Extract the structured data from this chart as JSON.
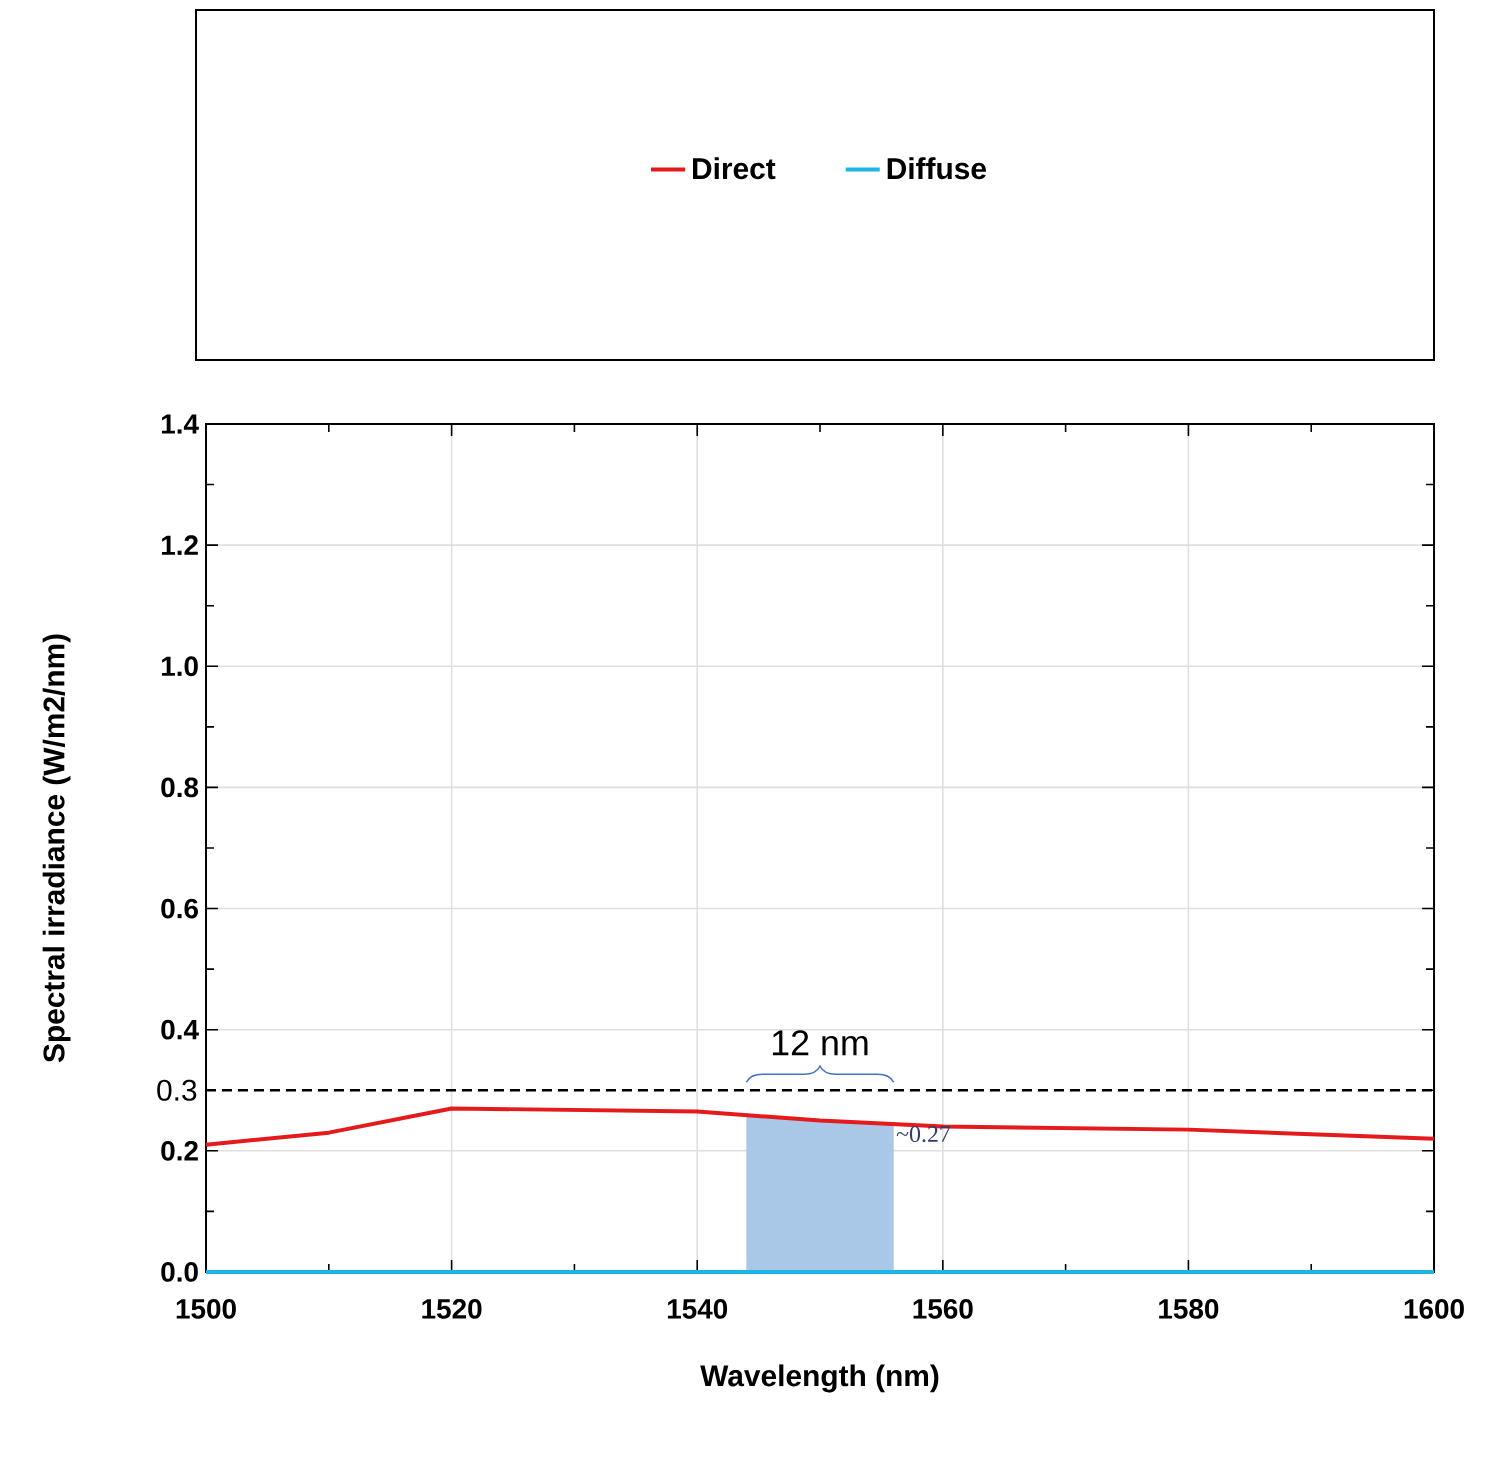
{
  "chart_data": {
    "type": "line",
    "xlabel": "Wavelength (nm)",
    "ylabel": "Spectral irradiance (W/m2/nm)",
    "x": [
      1500,
      1510,
      1520,
      1540,
      1550,
      1560,
      1580,
      1600
    ],
    "series": [
      {
        "type": "area",
        "color": "#a9c8e8",
        "x": [
          1544,
          1550,
          1556
        ],
        "values": [
          0.26,
          0.25,
          0.245
        ]
      },
      {
        "name": "Direct",
        "color": "#e41a1c",
        "values": [
          0.21,
          0.23,
          0.27,
          0.265,
          0.25,
          0.24,
          0.235,
          0.22
        ]
      },
      {
        "name": "Diffuse",
        "color": "#1eb4e6",
        "values": [
          0.0,
          0.0,
          0.0,
          0.0,
          0.0,
          0.0,
          0.0,
          0.0
        ]
      }
    ],
    "xlim": [
      1500,
      1600
    ],
    "xticks": [
      1500,
      1520,
      1540,
      1560,
      1580,
      1600
    ],
    "ylim": [
      0,
      1.4
    ],
    "yticks": [
      {
        "value": 0,
        "label": "0.0"
      },
      0.2,
      0.4,
      0.6,
      0.8,
      {
        "value": 1,
        "label": "1.0"
      },
      1.2,
      1.4
    ],
    "ref_lines": [
      {
        "axis": "y",
        "value": 0.3,
        "label": "0.3",
        "color": "#000000",
        "line_style": "dashed"
      }
    ],
    "annotations": [
      "12 nm",
      {
        "text": "~0.27",
        "x": 1556,
        "y": 0.245
      }
    ],
    "grid": true,
    "legend": "top",
    "marker": "none",
    "line_style": "solid"
  }
}
